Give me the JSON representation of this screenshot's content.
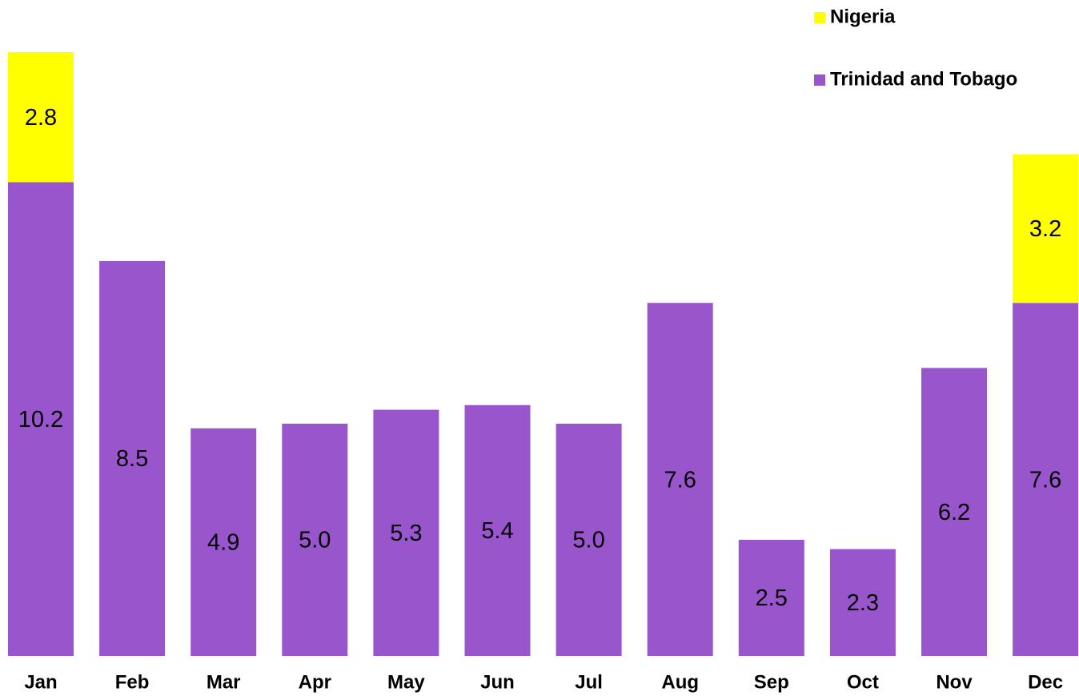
{
  "chart_data": {
    "type": "stacked_bar",
    "categories": [
      "Jan",
      "Feb",
      "Mar",
      "Apr",
      "May",
      "Jun",
      "Jul",
      "Aug",
      "Sep",
      "Oct",
      "Nov",
      "Dec"
    ],
    "series": [
      {
        "name": "Trinidad and Tobago",
        "color": "#9955cc",
        "values": [
          10.2,
          8.5,
          4.9,
          5.0,
          5.3,
          5.4,
          5.0,
          7.6,
          2.5,
          2.3,
          6.2,
          7.6
        ],
        "value_labels": [
          "10.2",
          "8.5",
          "4.9",
          "5.0",
          "5.3",
          "5.4",
          "5.0",
          "7.6",
          "2.5",
          "2.3",
          "6.2",
          "7.6"
        ]
      },
      {
        "name": "Nigeria",
        "color": "#ffff00",
        "values": [
          2.8,
          null,
          null,
          null,
          null,
          null,
          null,
          null,
          null,
          null,
          null,
          3.2
        ],
        "value_labels": [
          "2.8",
          null,
          null,
          null,
          null,
          null,
          null,
          null,
          null,
          null,
          null,
          "3.2"
        ]
      }
    ],
    "legend": "top-right"
  }
}
